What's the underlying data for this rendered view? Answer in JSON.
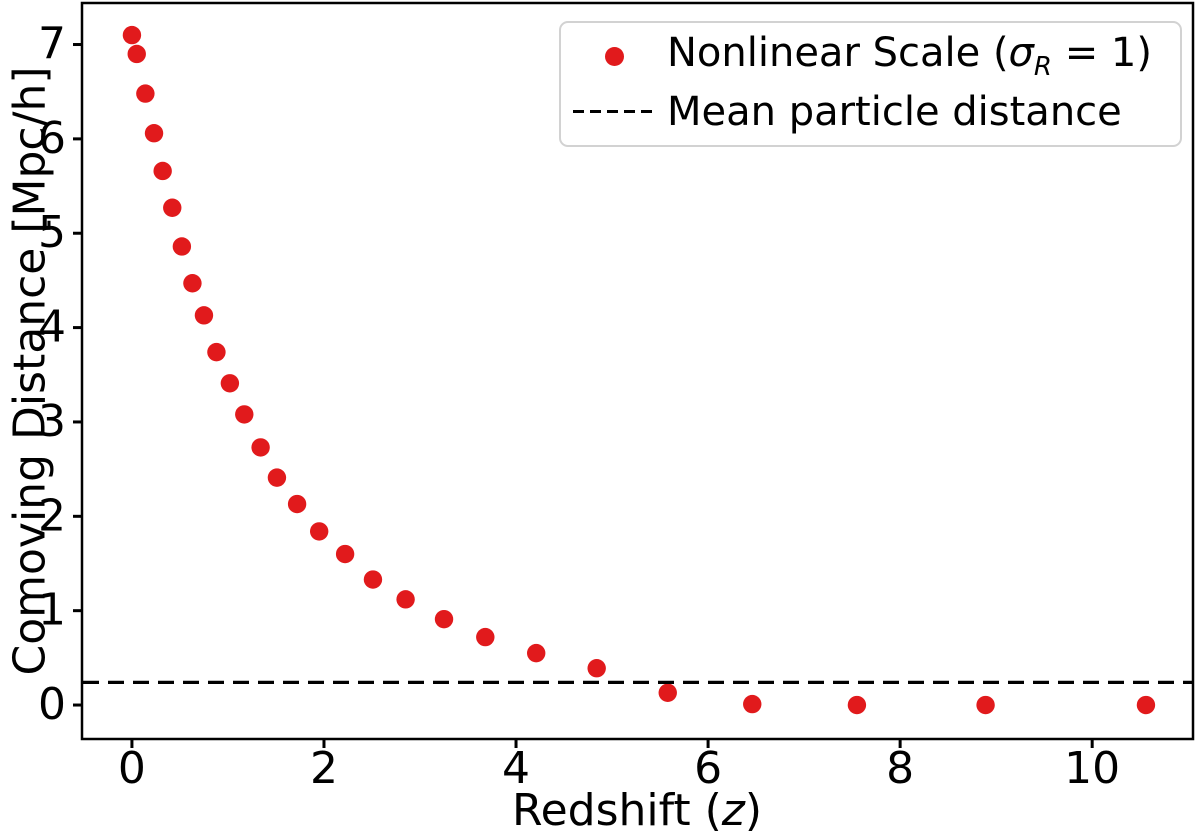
{
  "figure": {
    "background": "#ffffff",
    "axis_color": "#000000",
    "tick_label_color": "#000000"
  },
  "axes": {
    "xlabel": {
      "prefix": "Redshift (",
      "var": "z",
      "suffix": ")"
    },
    "ylabel": "Comoving Distance [Mpc/h]"
  },
  "legend": {
    "items": [
      {
        "marker": "red-dot",
        "prefix": "Nonlinear Scale (",
        "sigma": "σ",
        "subscript": "R",
        "suffix": " = 1)"
      },
      {
        "marker": "dashed-line",
        "label": "Mean particle distance"
      }
    ]
  },
  "chart_data": {
    "type": "scatter",
    "title": "",
    "xlabel": "Redshift (z)",
    "ylabel": "Comoving Distance [Mpc/h]",
    "xlim": [
      -0.52,
      11.05
    ],
    "ylim": [
      -0.36,
      7.44
    ],
    "x_ticks": [
      0,
      2,
      4,
      6,
      8,
      10
    ],
    "y_ticks": [
      0,
      1,
      2,
      3,
      4,
      5,
      6,
      7
    ],
    "grid": false,
    "legend_position": "upper right",
    "series": [
      {
        "name": "Nonlinear Scale (σ_R = 1)",
        "type": "scatter",
        "color": "#e11a1c",
        "marker_radius_px": 9.2,
        "x": [
          0.0,
          0.05,
          0.14,
          0.23,
          0.32,
          0.42,
          0.52,
          0.63,
          0.75,
          0.88,
          1.02,
          1.17,
          1.34,
          1.51,
          1.72,
          1.95,
          2.22,
          2.51,
          2.85,
          3.25,
          3.68,
          4.21,
          4.84,
          5.58,
          6.46,
          7.55,
          8.89,
          10.56
        ],
        "y": [
          7.1,
          6.9,
          6.48,
          6.06,
          5.66,
          5.27,
          4.86,
          4.47,
          4.13,
          3.74,
          3.41,
          3.08,
          2.73,
          2.41,
          2.13,
          1.84,
          1.6,
          1.33,
          1.12,
          0.91,
          0.72,
          0.55,
          0.39,
          0.13,
          0.01,
          0.0,
          0.0,
          0.0
        ]
      },
      {
        "name": "Mean particle distance",
        "type": "hline",
        "color": "#000000",
        "linestyle": "dashed",
        "y": 0.24
      }
    ]
  }
}
